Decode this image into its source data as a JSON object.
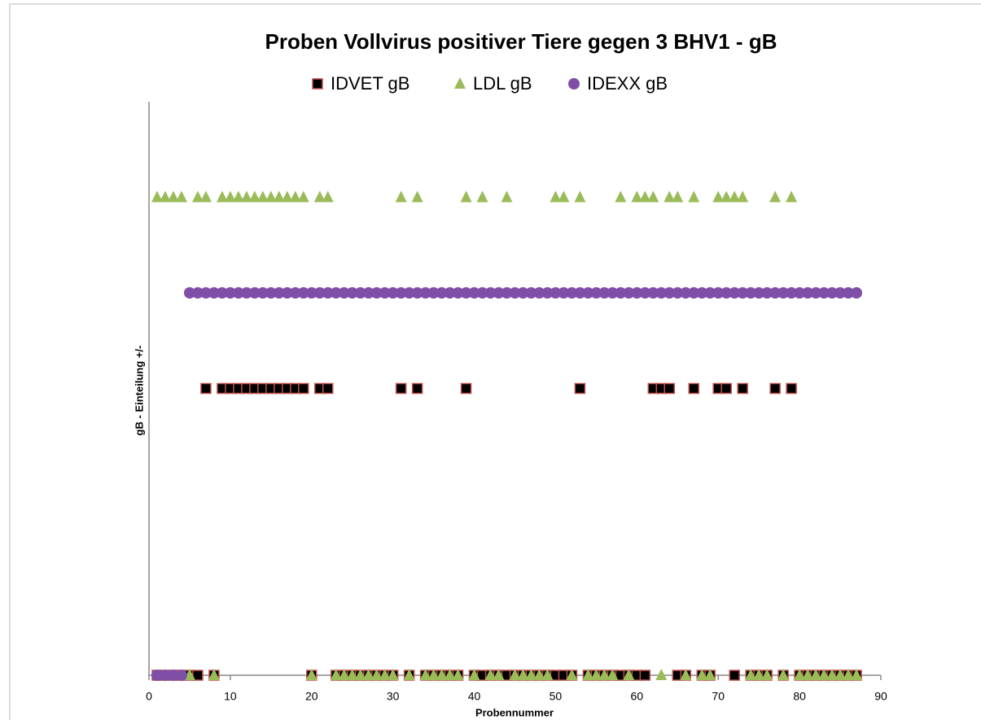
{
  "chart_data": {
    "type": "scatter",
    "title": "Proben Vollvirus positiver Tiere gegen  3 BHV1 - gB",
    "x_label": "Probennummer",
    "y_label": "gB - Einteilung +/-",
    "x": [
      1,
      2,
      3,
      4,
      5,
      6,
      7,
      8,
      9,
      10,
      11,
      12,
      13,
      14,
      15,
      16,
      17,
      18,
      19,
      20,
      21,
      22,
      23,
      24,
      25,
      26,
      27,
      28,
      29,
      30,
      31,
      32,
      33,
      34,
      35,
      36,
      37,
      38,
      39,
      40,
      41,
      42,
      43,
      44,
      45,
      46,
      47,
      48,
      49,
      50,
      51,
      52,
      53,
      54,
      55,
      56,
      57,
      58,
      59,
      60,
      61,
      62,
      63,
      64,
      65,
      66,
      67,
      68,
      69,
      70,
      71,
      72,
      73,
      74,
      75,
      76,
      77,
      78,
      79,
      80,
      81,
      82,
      83,
      84,
      85,
      86,
      87
    ],
    "series": [
      {
        "name": "IDVET gB",
        "color": "#000000",
        "edge": "#c0504d",
        "marker": "square",
        "values": [
          0,
          0,
          0,
          0,
          0,
          0,
          3,
          0,
          3,
          3,
          3,
          3,
          3,
          3,
          3,
          3,
          3,
          3,
          3,
          0,
          3,
          3,
          0,
          0,
          0,
          0,
          0,
          0,
          0,
          0,
          3,
          0,
          3,
          0,
          0,
          0,
          0,
          0,
          3,
          0,
          0,
          0,
          0,
          0,
          0,
          0,
          0,
          0,
          0,
          0,
          0,
          0,
          3,
          0,
          0,
          0,
          0,
          0,
          0,
          0,
          0,
          3,
          3,
          3,
          0,
          0,
          3,
          0,
          0,
          3,
          3,
          0,
          3,
          0,
          0,
          0,
          3,
          0,
          3,
          0,
          0,
          0,
          0,
          0,
          0,
          0,
          0
        ]
      },
      {
        "name": "LDL gB",
        "color": "#9bbb59",
        "marker": "triangle",
        "values": [
          5,
          5,
          5,
          5,
          0,
          5,
          5,
          0,
          5,
          5,
          5,
          5,
          5,
          5,
          5,
          5,
          5,
          5,
          5,
          0,
          5,
          5,
          0,
          0,
          0,
          0,
          0,
          0,
          0,
          0,
          5,
          0,
          5,
          0,
          0,
          0,
          0,
          0,
          5,
          0,
          5,
          0,
          0,
          5,
          0,
          0,
          0,
          0,
          0,
          5,
          5,
          0,
          5,
          0,
          0,
          0,
          0,
          5,
          0,
          5,
          5,
          5,
          0,
          5,
          5,
          0,
          5,
          0,
          0,
          5,
          5,
          5,
          5,
          0,
          0,
          0,
          5,
          0,
          5,
          0,
          0,
          0,
          0,
          0,
          0,
          0,
          0
        ]
      },
      {
        "name": "IDEXX gB",
        "color": "#7f4fa8",
        "marker": "circle",
        "values": [
          0,
          0,
          0,
          0,
          4,
          4,
          4,
          4,
          4,
          4,
          4,
          4,
          4,
          4,
          4,
          4,
          4,
          4,
          4,
          4,
          4,
          4,
          4,
          4,
          4,
          4,
          4,
          4,
          4,
          4,
          4,
          4,
          4,
          4,
          4,
          4,
          4,
          4,
          4,
          4,
          4,
          4,
          4,
          4,
          4,
          4,
          4,
          4,
          4,
          4,
          4,
          4,
          4,
          4,
          4,
          4,
          4,
          4,
          4,
          4,
          4,
          4,
          4,
          4,
          4,
          4,
          4,
          4,
          4,
          4,
          4,
          4,
          4,
          4,
          4,
          4,
          4,
          4,
          4,
          4,
          4,
          4,
          4,
          4,
          4,
          4,
          4
        ]
      }
    ],
    "xlim": [
      0,
      90
    ],
    "xticks": [
      0,
      10,
      20,
      30,
      40,
      50,
      60,
      70,
      80,
      90
    ],
    "ylim": [
      0,
      6
    ],
    "legend": "top"
  }
}
